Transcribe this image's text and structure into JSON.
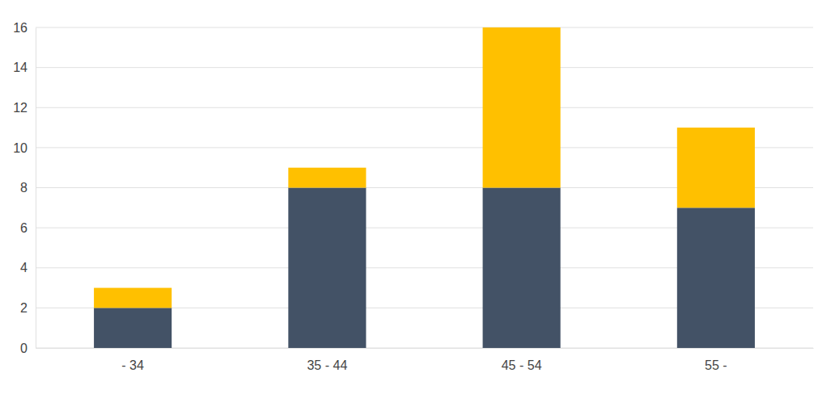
{
  "chart_data": {
    "type": "bar",
    "stacked": true,
    "grid": true,
    "categories": [
      "- 34",
      "35 - 44",
      "45 - 54",
      "55 -"
    ],
    "series": [
      {
        "color": "#435266",
        "values": [
          2,
          8,
          8,
          7
        ]
      },
      {
        "color": "#ffc000",
        "values": [
          1,
          1,
          8,
          4
        ]
      }
    ],
    "ylim": [
      0,
      16
    ],
    "yticks": [
      0,
      2,
      4,
      6,
      8,
      10,
      12,
      14,
      16
    ]
  }
}
